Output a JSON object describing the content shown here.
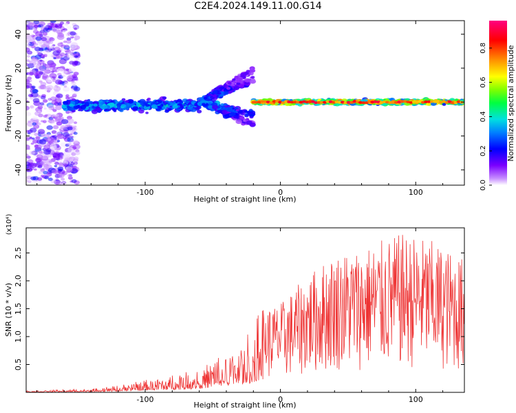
{
  "title": "C2E4.2024.149.11.00.G14",
  "chart_data": [
    {
      "type": "heatmap",
      "xlabel": "Height of straight line (km)",
      "ylabel": "Frequency (Hz)",
      "xlim": [
        -188,
        136
      ],
      "ylim": [
        -49,
        48
      ],
      "xticks": [
        -100,
        0,
        100
      ],
      "xtick_labels": [
        "-100",
        "0",
        "100"
      ],
      "yticks": [
        -40,
        -20,
        0,
        20,
        40
      ],
      "ytick_labels": [
        "-40",
        "-20",
        "0",
        "20",
        "40"
      ],
      "colorbar": {
        "label": "Normalized spectral amplitude",
        "range": [
          0,
          0.96
        ],
        "ticks": [
          0.0,
          0.2,
          0.4,
          0.6,
          0.8
        ],
        "tick_labels": [
          "0.0",
          "0.2",
          "0.4",
          "0.6",
          "0.8"
        ]
      },
      "bands": [
        {
          "x": [
            -188,
            -150
          ],
          "y_center": 0,
          "spread": 48,
          "amplitude": [
            0.05,
            0.3
          ]
        },
        {
          "x": [
            -160,
            -60
          ],
          "y_center": -2,
          "spread": 5,
          "amplitude": [
            0.2,
            0.45
          ]
        },
        {
          "x": [
            -60,
            -20
          ],
          "y_center": 0,
          "spread": 10,
          "amplitude": [
            0.15,
            0.4
          ]
        },
        {
          "x": [
            -20,
            136
          ],
          "y_center": 0,
          "spread": 2,
          "amplitude": [
            0.35,
            0.9
          ]
        }
      ]
    },
    {
      "type": "line",
      "xlabel": "Height of straight line (km)",
      "ylabel": "SNR (10 * v/v)",
      "y_scale_label": "(x10⁴)",
      "xlim": [
        -188,
        136
      ],
      "ylim": [
        0,
        2.95
      ],
      "xticks": [
        -100,
        0,
        100
      ],
      "xtick_labels": [
        "-100",
        "0",
        "100"
      ],
      "yticks": [
        0.5,
        1.0,
        1.5,
        2.0,
        2.5
      ],
      "ytick_labels": [
        "0.5",
        "1.0",
        "1.5",
        "2.0",
        "2.5"
      ],
      "color": "#ee3333",
      "envelope": [
        {
          "x": -188,
          "y": 0.03
        },
        {
          "x": -140,
          "y": 0.06
        },
        {
          "x": -120,
          "y": 0.12
        },
        {
          "x": -100,
          "y": 0.22
        },
        {
          "x": -80,
          "y": 0.3
        },
        {
          "x": -60,
          "y": 0.42
        },
        {
          "x": -40,
          "y": 0.7
        },
        {
          "x": -30,
          "y": 0.95
        },
        {
          "x": -20,
          "y": 1.1
        },
        {
          "x": -15,
          "y": 1.5
        },
        {
          "x": 0,
          "y": 1.6
        },
        {
          "x": 20,
          "y": 2.1
        },
        {
          "x": 40,
          "y": 2.5
        },
        {
          "x": 60,
          "y": 2.6
        },
        {
          "x": 90,
          "y": 2.85
        },
        {
          "x": 110,
          "y": 2.75
        },
        {
          "x": 136,
          "y": 2.4
        }
      ]
    }
  ]
}
